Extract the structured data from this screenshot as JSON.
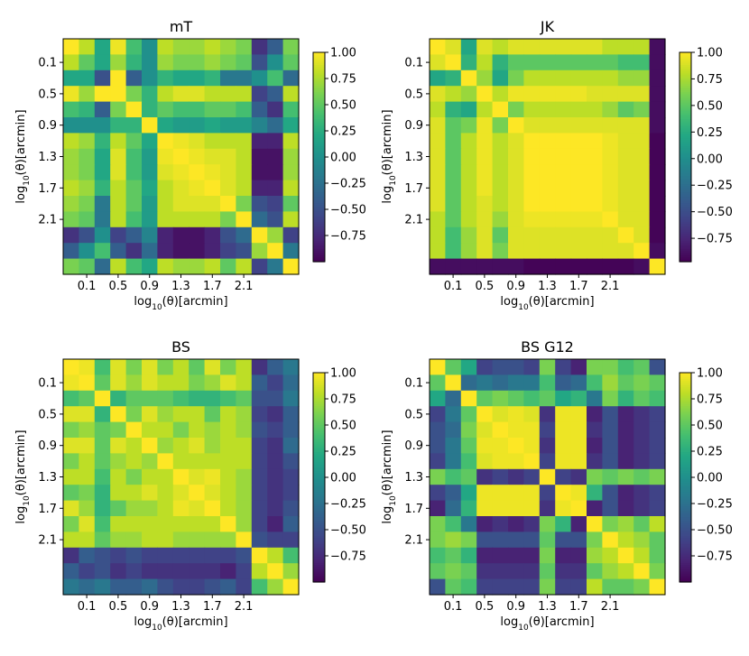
{
  "chart_data": [
    {
      "type": "heatmap",
      "title": "mT",
      "xlabel_parts": [
        "log",
        "10",
        "(θ)[arcmin]"
      ],
      "ylabel_parts": [
        "log",
        "10",
        "(θ)[arcmin]"
      ],
      "tick_labels": [
        "0.1",
        "0.5",
        "0.9",
        "1.3",
        "1.7",
        "2.1"
      ],
      "tick_index": [
        1.5,
        3.5,
        5.5,
        7.5,
        9.5,
        11.5
      ],
      "colorbar_ticks": [
        "1.00",
        "0.75",
        "0.50",
        "0.25",
        "0.00",
        "−0.25",
        "−0.50",
        "−0.75"
      ],
      "colorbar_values": [
        1.0,
        0.75,
        0.5,
        0.25,
        0.0,
        -0.25,
        -0.5,
        -0.75
      ],
      "vmin": -1.0,
      "vmax": 1.0,
      "matrix": [
        [
          1.0,
          0.8,
          0.2,
          0.95,
          0.4,
          0.0,
          0.8,
          0.7,
          0.7,
          0.8,
          0.7,
          0.6,
          -0.7,
          -0.4,
          0.6
        ],
        [
          0.8,
          0.5,
          0.2,
          0.7,
          0.3,
          0.0,
          0.7,
          0.6,
          0.6,
          0.7,
          0.6,
          0.5,
          -0.5,
          0.0,
          0.5
        ],
        [
          0.2,
          0.2,
          -0.5,
          1.0,
          -0.4,
          0.0,
          0.3,
          0.2,
          0.2,
          0.3,
          -0.2,
          -0.2,
          0.0,
          0.4,
          -0.3
        ],
        [
          0.95,
          0.7,
          1.0,
          1.0,
          0.6,
          0.3,
          0.8,
          0.9,
          0.9,
          0.8,
          0.8,
          0.8,
          -0.6,
          -0.4,
          0.8
        ],
        [
          0.4,
          0.3,
          -0.4,
          0.6,
          1.0,
          0.3,
          0.5,
          0.4,
          0.4,
          0.5,
          0.5,
          0.4,
          -0.4,
          -0.7,
          0.4
        ],
        [
          0.0,
          0.0,
          0.0,
          0.3,
          0.3,
          1.0,
          0.2,
          0.1,
          0.1,
          0.2,
          0.1,
          0.1,
          -0.1,
          -0.3,
          0.2
        ],
        [
          0.8,
          0.7,
          0.3,
          0.8,
          0.5,
          0.2,
          1.0,
          0.95,
          0.9,
          0.8,
          0.8,
          0.8,
          -0.8,
          -0.8,
          0.8
        ],
        [
          0.7,
          0.6,
          0.2,
          0.9,
          0.4,
          0.1,
          0.95,
          1.0,
          0.95,
          0.9,
          0.9,
          0.8,
          -0.9,
          -0.9,
          0.7
        ],
        [
          0.7,
          0.6,
          0.2,
          0.9,
          0.4,
          0.1,
          0.9,
          0.95,
          1.0,
          0.95,
          0.9,
          0.8,
          -0.9,
          -0.9,
          0.7
        ],
        [
          0.8,
          0.7,
          0.3,
          0.8,
          0.5,
          0.2,
          0.8,
          0.9,
          0.95,
          1.0,
          0.9,
          0.8,
          -0.8,
          -0.8,
          0.8
        ],
        [
          0.7,
          0.6,
          -0.2,
          0.8,
          0.5,
          0.1,
          0.8,
          0.9,
          0.9,
          0.9,
          1.0,
          0.6,
          -0.5,
          -0.6,
          0.5
        ],
        [
          0.6,
          0.5,
          -0.2,
          0.8,
          0.4,
          0.1,
          0.8,
          0.8,
          0.8,
          0.8,
          0.6,
          1.0,
          -0.3,
          -0.5,
          0.8
        ],
        [
          -0.7,
          -0.5,
          0.0,
          -0.6,
          -0.4,
          -0.1,
          -0.8,
          -0.9,
          -0.9,
          -0.8,
          -0.5,
          -0.3,
          1.0,
          0.7,
          -0.6
        ],
        [
          -0.4,
          0.0,
          0.4,
          -0.4,
          -0.7,
          -0.3,
          -0.8,
          -0.9,
          -0.9,
          -0.8,
          -0.6,
          -0.5,
          0.7,
          1.0,
          -0.2
        ],
        [
          0.6,
          0.5,
          -0.3,
          0.8,
          0.4,
          0.2,
          0.8,
          0.7,
          0.7,
          0.8,
          0.5,
          0.8,
          -0.6,
          -0.2,
          1.0
        ]
      ]
    },
    {
      "type": "heatmap",
      "title": "JK",
      "xlabel_parts": [
        "log",
        "10",
        "(θ)[arcmin]"
      ],
      "ylabel_parts": [
        "log",
        "10",
        "(θ)[arcmin]"
      ],
      "tick_labels": [
        "0.1",
        "0.5",
        "0.9",
        "1.3",
        "1.7",
        "2.1"
      ],
      "tick_index": [
        1.5,
        3.5,
        5.5,
        7.5,
        9.5,
        11.5
      ],
      "colorbar_ticks": [
        "1.00",
        "0.75",
        "0.50",
        "0.25",
        "0.00",
        "−0.25",
        "−0.50",
        "−0.75"
      ],
      "colorbar_values": [
        1.0,
        0.75,
        0.5,
        0.25,
        0.0,
        -0.25,
        -0.5,
        -0.75
      ],
      "vmin": -0.97,
      "vmax": 1.0,
      "matrix": [
        [
          1.0,
          0.9,
          0.2,
          0.9,
          0.8,
          0.9,
          0.9,
          0.9,
          0.9,
          0.9,
          0.9,
          0.8,
          0.8,
          0.8,
          -0.9
        ],
        [
          0.9,
          1.0,
          0.3,
          0.8,
          0.3,
          0.5,
          0.5,
          0.5,
          0.5,
          0.5,
          0.5,
          0.5,
          0.4,
          0.4,
          -0.9
        ],
        [
          0.2,
          0.3,
          1.0,
          0.7,
          0.2,
          0.6,
          0.8,
          0.8,
          0.8,
          0.8,
          0.8,
          0.8,
          0.7,
          0.7,
          -0.9
        ],
        [
          0.9,
          0.8,
          0.7,
          1.0,
          0.8,
          0.95,
          0.95,
          0.95,
          0.95,
          0.95,
          0.9,
          0.9,
          0.9,
          0.9,
          -0.9
        ],
        [
          0.8,
          0.3,
          0.2,
          0.8,
          1.0,
          0.6,
          0.8,
          0.8,
          0.8,
          0.8,
          0.8,
          0.7,
          0.5,
          0.6,
          -0.9
        ],
        [
          0.9,
          0.5,
          0.6,
          0.95,
          0.6,
          1.0,
          0.9,
          0.9,
          0.9,
          0.9,
          0.9,
          0.9,
          0.9,
          0.9,
          -0.9
        ],
        [
          0.9,
          0.5,
          0.8,
          0.95,
          0.8,
          0.9,
          1.0,
          1.0,
          1.0,
          1.0,
          1.0,
          0.95,
          0.9,
          0.9,
          -0.95
        ],
        [
          0.9,
          0.5,
          0.8,
          0.95,
          0.8,
          0.9,
          1.0,
          1.0,
          1.0,
          1.0,
          1.0,
          0.95,
          0.9,
          0.9,
          -0.95
        ],
        [
          0.9,
          0.5,
          0.8,
          0.95,
          0.8,
          0.9,
          1.0,
          1.0,
          1.0,
          1.0,
          1.0,
          0.95,
          0.9,
          0.9,
          -0.95
        ],
        [
          0.9,
          0.5,
          0.8,
          0.95,
          0.8,
          0.9,
          1.0,
          1.0,
          1.0,
          1.0,
          1.0,
          0.95,
          0.9,
          0.9,
          -0.95
        ],
        [
          0.9,
          0.5,
          0.8,
          0.9,
          0.8,
          0.9,
          1.0,
          1.0,
          1.0,
          1.0,
          1.0,
          0.95,
          0.9,
          0.9,
          -0.95
        ],
        [
          0.8,
          0.5,
          0.8,
          0.9,
          0.7,
          0.9,
          0.95,
          0.95,
          0.95,
          0.95,
          0.95,
          1.0,
          0.9,
          0.9,
          -0.95
        ],
        [
          0.8,
          0.4,
          0.7,
          0.9,
          0.5,
          0.9,
          0.9,
          0.9,
          0.9,
          0.9,
          0.9,
          0.9,
          1.0,
          0.9,
          -0.95
        ],
        [
          0.8,
          0.4,
          0.7,
          0.9,
          0.6,
          0.9,
          0.9,
          0.9,
          0.9,
          0.9,
          0.9,
          0.9,
          0.9,
          1.0,
          -0.9
        ],
        [
          -0.9,
          -0.9,
          -0.9,
          -0.9,
          -0.9,
          -0.9,
          -0.95,
          -0.95,
          -0.95,
          -0.95,
          -0.95,
          -0.95,
          -0.95,
          -0.9,
          1.0
        ]
      ]
    },
    {
      "type": "heatmap",
      "title": "BS",
      "xlabel_parts": [
        "log",
        "10",
        "(θ)[arcmin]"
      ],
      "ylabel_parts": [
        "log",
        "10",
        "(θ)[arcmin]"
      ],
      "tick_labels": [
        "0.1",
        "0.5",
        "0.9",
        "1.3",
        "1.7",
        "2.1"
      ],
      "tick_index": [
        1.5,
        3.5,
        5.5,
        7.5,
        9.5,
        11.5
      ],
      "colorbar_ticks": [
        "1.00",
        "0.75",
        "0.50",
        "0.25",
        "0.00",
        "−0.25",
        "−0.50",
        "−0.75"
      ],
      "colorbar_values": [
        1.0,
        0.75,
        0.5,
        0.25,
        0.0,
        -0.25,
        -0.5,
        -0.75
      ],
      "vmin": -1.0,
      "vmax": 1.0,
      "matrix": [
        [
          1.0,
          0.95,
          0.4,
          0.9,
          0.6,
          0.9,
          0.6,
          0.8,
          0.5,
          0.9,
          0.6,
          0.8,
          -0.7,
          -0.4,
          -0.2
        ],
        [
          0.95,
          1.0,
          0.5,
          0.9,
          0.7,
          0.9,
          0.8,
          0.8,
          0.6,
          0.7,
          0.9,
          0.8,
          -0.4,
          -0.6,
          -0.3
        ],
        [
          0.4,
          0.5,
          1.0,
          0.3,
          0.5,
          0.5,
          0.5,
          0.4,
          0.3,
          0.3,
          0.4,
          0.5,
          -0.5,
          -0.5,
          -0.2
        ],
        [
          0.9,
          0.9,
          0.3,
          1.0,
          0.6,
          0.9,
          0.7,
          0.8,
          0.8,
          0.5,
          0.8,
          0.7,
          -0.6,
          -0.7,
          -0.4
        ],
        [
          0.6,
          0.7,
          0.5,
          0.6,
          1.0,
          0.8,
          0.8,
          0.6,
          0.8,
          0.7,
          0.8,
          0.7,
          -0.5,
          -0.6,
          -0.4
        ],
        [
          0.9,
          0.9,
          0.5,
          0.9,
          0.8,
          1.0,
          0.7,
          0.8,
          0.9,
          0.7,
          0.8,
          0.8,
          -0.6,
          -0.7,
          -0.3
        ],
        [
          0.6,
          0.8,
          0.5,
          0.7,
          0.8,
          0.7,
          1.0,
          0.8,
          0.8,
          0.8,
          0.8,
          0.8,
          -0.6,
          -0.7,
          -0.5
        ],
        [
          0.8,
          0.8,
          0.4,
          0.8,
          0.6,
          0.8,
          0.8,
          1.0,
          0.9,
          0.95,
          0.8,
          0.7,
          -0.6,
          -0.7,
          -0.6
        ],
        [
          0.5,
          0.6,
          0.3,
          0.8,
          0.8,
          0.9,
          0.8,
          0.9,
          1.0,
          0.9,
          0.8,
          0.7,
          -0.6,
          -0.7,
          -0.6
        ],
        [
          0.9,
          0.7,
          0.3,
          0.5,
          0.7,
          0.7,
          0.8,
          0.95,
          0.9,
          1.0,
          0.8,
          0.7,
          -0.6,
          -0.7,
          -0.5
        ],
        [
          0.6,
          0.9,
          0.4,
          0.8,
          0.8,
          0.8,
          0.8,
          0.8,
          0.8,
          0.8,
          1.0,
          0.7,
          -0.6,
          -0.8,
          -0.4
        ],
        [
          0.8,
          0.8,
          0.5,
          0.7,
          0.7,
          0.8,
          0.8,
          0.7,
          0.7,
          0.7,
          0.7,
          1.0,
          -0.5,
          -0.6,
          -0.6
        ],
        [
          -0.7,
          -0.4,
          -0.5,
          -0.6,
          -0.5,
          -0.6,
          -0.6,
          -0.6,
          -0.6,
          -0.6,
          -0.6,
          -0.5,
          1.0,
          0.8,
          0.4
        ],
        [
          -0.4,
          -0.6,
          -0.5,
          -0.7,
          -0.6,
          -0.7,
          -0.7,
          -0.7,
          -0.7,
          -0.7,
          -0.8,
          -0.6,
          0.8,
          1.0,
          0.7
        ],
        [
          -0.2,
          -0.3,
          -0.2,
          -0.4,
          -0.4,
          -0.3,
          -0.5,
          -0.6,
          -0.6,
          -0.5,
          -0.4,
          -0.6,
          0.4,
          0.7,
          1.0
        ]
      ]
    },
    {
      "type": "heatmap",
      "title": "BS G12",
      "xlabel_parts": [
        "log",
        "10",
        "(θ)[arcmin]"
      ],
      "ylabel_parts": [
        "log",
        "10",
        "(θ)[arcmin]"
      ],
      "tick_labels": [
        "0.1",
        "0.5",
        "0.9",
        "1.3",
        "1.7",
        "2.1"
      ],
      "tick_index": [
        1.5,
        3.5,
        5.5,
        7.5,
        9.5,
        11.5
      ],
      "colorbar_ticks": [
        "1.00",
        "0.75",
        "0.50",
        "0.25",
        "0.00",
        "−0.25",
        "−0.50",
        "−0.75"
      ],
      "colorbar_values": [
        1.0,
        0.75,
        0.5,
        0.25,
        0.0,
        -0.25,
        -0.5,
        -0.75
      ],
      "vmin": -1.0,
      "vmax": 1.0,
      "matrix": [
        [
          1.0,
          0.5,
          0.2,
          -0.6,
          -0.5,
          -0.5,
          -0.6,
          0.6,
          -0.6,
          -0.8,
          0.6,
          0.6,
          0.4,
          0.5,
          -0.5
        ],
        [
          0.5,
          1.0,
          -0.3,
          -0.2,
          -0.3,
          -0.2,
          -0.2,
          0.4,
          -0.4,
          -0.3,
          0.4,
          0.7,
          0.5,
          0.6,
          0.5
        ],
        [
          0.2,
          -0.3,
          1.0,
          0.5,
          0.6,
          0.5,
          0.4,
          0.5,
          0.2,
          0.3,
          -0.2,
          0.6,
          0.3,
          0.5,
          0.4
        ],
        [
          -0.6,
          -0.2,
          0.5,
          1.0,
          0.9,
          0.95,
          0.9,
          -0.7,
          0.95,
          0.95,
          -0.8,
          -0.5,
          -0.8,
          -0.7,
          -0.6
        ],
        [
          -0.5,
          -0.3,
          0.6,
          0.9,
          1.0,
          0.95,
          0.95,
          -0.6,
          0.95,
          0.95,
          -0.7,
          -0.5,
          -0.8,
          -0.7,
          -0.6
        ],
        [
          -0.5,
          -0.2,
          0.5,
          0.95,
          0.95,
          1.0,
          0.95,
          -0.7,
          0.95,
          0.95,
          -0.8,
          -0.5,
          -0.8,
          -0.7,
          -0.6
        ],
        [
          -0.6,
          -0.2,
          0.4,
          0.9,
          0.95,
          0.95,
          1.0,
          -0.6,
          0.95,
          0.95,
          -0.7,
          -0.5,
          -0.8,
          -0.7,
          -0.6
        ],
        [
          0.6,
          0.4,
          0.5,
          -0.7,
          -0.6,
          -0.7,
          -0.6,
          1.0,
          -0.6,
          -0.7,
          0.6,
          0.5,
          0.6,
          0.5,
          0.6
        ],
        [
          -0.6,
          -0.4,
          0.2,
          0.95,
          0.95,
          0.95,
          0.95,
          -0.6,
          1.0,
          0.95,
          0.3,
          -0.5,
          -0.8,
          -0.7,
          -0.6
        ],
        [
          -0.8,
          -0.3,
          0.3,
          0.95,
          0.95,
          0.95,
          0.95,
          -0.7,
          0.95,
          1.0,
          -0.8,
          -0.5,
          -0.8,
          -0.7,
          -0.6
        ],
        [
          0.6,
          0.4,
          -0.2,
          -0.8,
          -0.7,
          -0.8,
          -0.7,
          0.6,
          0.3,
          -0.8,
          1.0,
          0.6,
          0.7,
          0.5,
          0.8
        ],
        [
          0.6,
          0.7,
          0.6,
          -0.5,
          -0.5,
          -0.5,
          -0.5,
          0.5,
          -0.5,
          -0.5,
          0.6,
          1.0,
          0.8,
          0.7,
          0.5
        ],
        [
          0.4,
          0.5,
          0.3,
          -0.8,
          -0.8,
          -0.8,
          -0.8,
          0.6,
          -0.8,
          -0.8,
          0.7,
          0.8,
          1.0,
          0.8,
          0.5
        ],
        [
          0.5,
          0.6,
          0.5,
          -0.7,
          -0.7,
          -0.7,
          -0.7,
          0.5,
          -0.7,
          -0.7,
          0.5,
          0.7,
          0.8,
          1.0,
          0.6
        ],
        [
          -0.5,
          0.5,
          0.4,
          -0.6,
          -0.6,
          -0.6,
          -0.6,
          0.6,
          -0.6,
          -0.6,
          0.8,
          0.5,
          0.5,
          0.6,
          1.0
        ]
      ]
    }
  ]
}
